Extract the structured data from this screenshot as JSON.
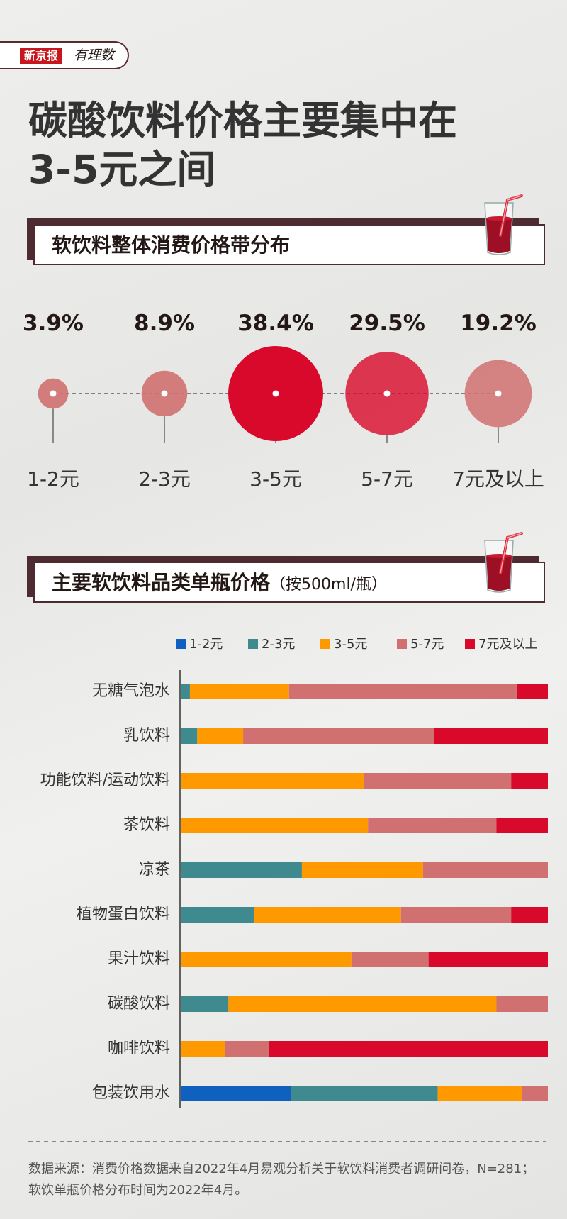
{
  "brand": {
    "name": "新京报",
    "tagline": "有理数"
  },
  "title_line1": "碳酸饮料价格主要集中在",
  "title_line2": "3-5元之间",
  "section1": {
    "title": "软饮料整体消费价格带分布"
  },
  "section2": {
    "title": "主要软饮料品类单瓶价格",
    "subtitle": "（按500ml/瓶）"
  },
  "colors": {
    "1-2元": "#1060c0",
    "2-3元": "#3e8a8e",
    "3-5元": "#ff9900",
    "5-7元": "#d07070",
    "7元及以上": "#d9092b",
    "accent_dark": "#4e2b30"
  },
  "chart_data": [
    {
      "type": "bubble",
      "categories": [
        "1-2元",
        "2-3元",
        "3-5元",
        "5-7元",
        "7元及以上"
      ],
      "values": [
        3.9,
        8.9,
        38.4,
        29.5,
        19.2
      ],
      "labels": [
        "3.9%",
        "8.9%",
        "38.4%",
        "29.5%",
        "19.2%"
      ]
    },
    {
      "type": "bar",
      "orientation": "horizontal",
      "stacked": true,
      "legend_position": "top",
      "categories": [
        "无糖气泡水",
        "乳饮料",
        "功能饮料/运动饮料",
        "茶饮料",
        "凉茶",
        "植物蛋白饮料",
        "果汁饮料",
        "碳酸饮料",
        "咖啡饮料",
        "包装饮用水"
      ],
      "series": [
        {
          "name": "1-2元",
          "values": [
            0,
            0,
            0,
            0,
            0,
            0,
            0,
            0,
            0,
            30
          ]
        },
        {
          "name": "2-3元",
          "values": [
            2.5,
            4.5,
            0,
            0,
            33,
            20,
            0,
            13,
            0,
            40
          ]
        },
        {
          "name": "3-5元",
          "values": [
            27,
            12.5,
            50,
            51,
            33,
            40,
            46.5,
            73,
            12,
            23
          ]
        },
        {
          "name": "5-7元",
          "values": [
            62,
            52,
            40,
            35,
            34,
            30,
            21,
            14,
            12,
            7
          ]
        },
        {
          "name": "7元及以上",
          "values": [
            8.5,
            31,
            10,
            14,
            0,
            10,
            32.5,
            0,
            76,
            0
          ]
        }
      ]
    }
  ],
  "footnote": "数据来源：消费价格数据来自2022年4月易观分析关于软饮料消费者调研问卷，N=281；软饮单瓶价格分布时间为2022年4月。"
}
